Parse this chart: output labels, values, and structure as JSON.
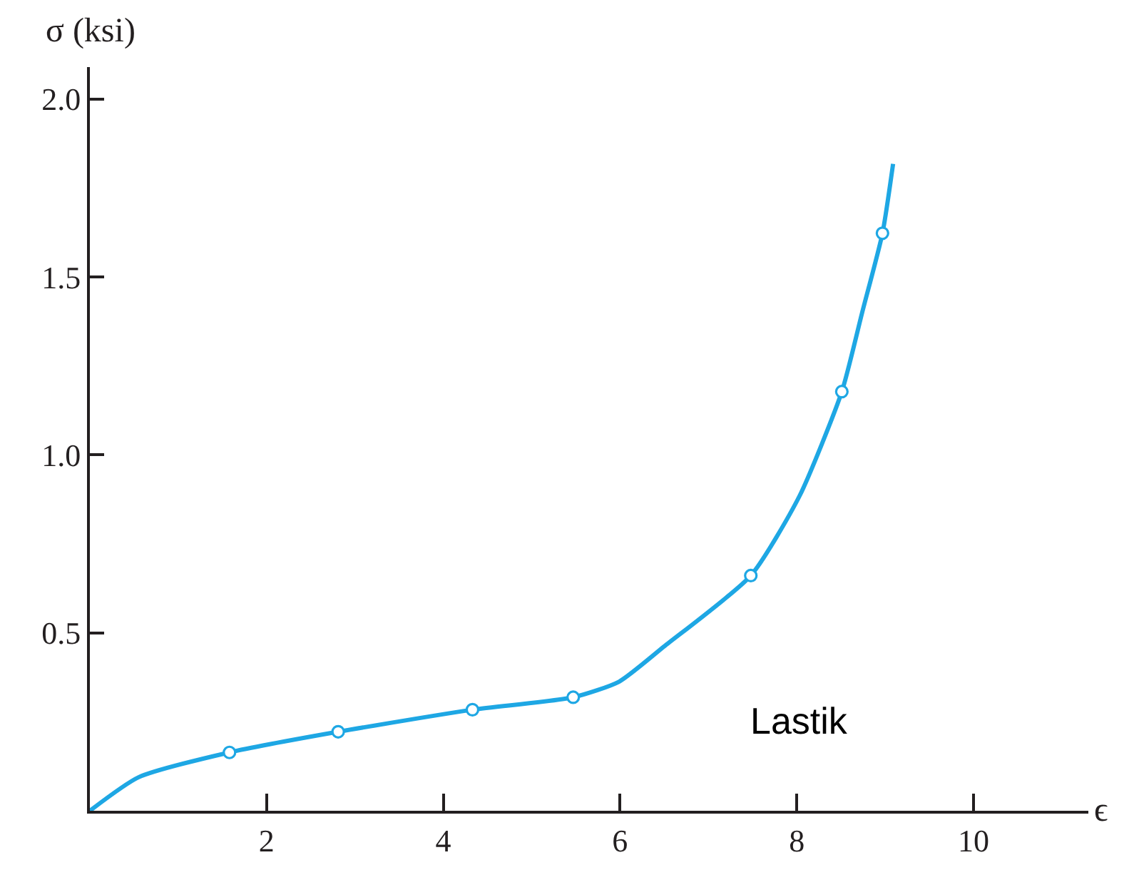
{
  "chart_data": {
    "type": "line",
    "xlabel": "ϵ",
    "ylabel": "σ (ksi)",
    "xlim": [
      0,
      11.3
    ],
    "ylim": [
      0,
      2.09
    ],
    "xticks": [
      2,
      4,
      6,
      8,
      10
    ],
    "yticks": [
      {
        "value": 0.5,
        "label": "0.5"
      },
      {
        "value": 1,
        "label": "1.0"
      },
      {
        "value": 1.5,
        "label": "1.5"
      },
      {
        "value": 2,
        "label": "2.0"
      }
    ],
    "series": [
      {
        "marker": "none",
        "line_style": "solid",
        "color": "#1ea7e4",
        "x": [
          0,
          0.55,
          1.58,
          2.81,
          4.33,
          5.47,
          5.99,
          6.5,
          7.48,
          8.03,
          8.51,
          8.74,
          8.97,
          9.09
        ],
        "values": [
          0,
          0.094,
          0.164,
          0.222,
          0.284,
          0.319,
          0.363,
          0.462,
          0.661,
          0.884,
          1.178,
          1.4,
          1.623,
          1.818
        ]
      },
      {
        "type": "scatter",
        "marker": "circle",
        "color": "#1ea7e4",
        "x": [
          1.58,
          2.81,
          4.33,
          5.47,
          7.48,
          8.51,
          8.97
        ],
        "values": [
          0.164,
          0.222,
          0.284,
          0.319,
          0.661,
          1.178,
          1.623
        ]
      }
    ],
    "annotations": [
      "Lastik"
    ]
  }
}
